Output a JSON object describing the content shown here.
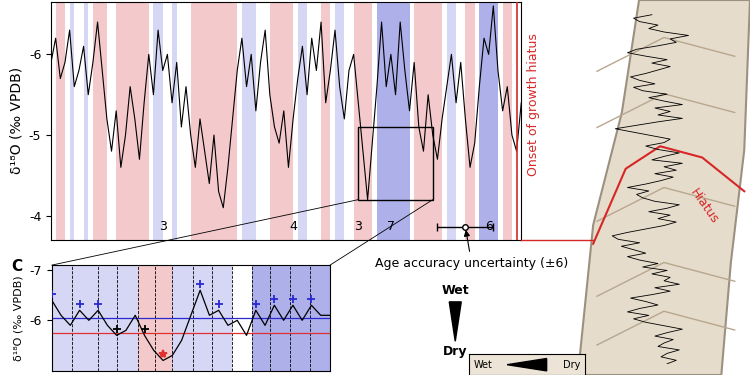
{
  "chart_data": [
    {
      "type": "line",
      "y_label": "δ¹⁸O (‰ VPDB)",
      "color": "#000000",
      "values": [
        -5.9,
        -6.2,
        -5.7,
        -5.9,
        -6.3,
        -5.6,
        -5.8,
        -6.1,
        -5.5,
        -5.9,
        -6.4,
        -5.8,
        -5.2,
        -4.8,
        -5.3,
        -4.6,
        -5.0,
        -5.6,
        -5.2,
        -4.7,
        -5.4,
        -6.0,
        -5.5,
        -6.3,
        -5.8,
        -6.0,
        -5.4,
        -5.9,
        -5.1,
        -5.6,
        -5.0,
        -4.6,
        -5.2,
        -4.8,
        -4.4,
        -5.0,
        -4.3,
        -4.1,
        -4.6,
        -5.2,
        -5.8,
        -6.2,
        -5.6,
        -6.0,
        -5.3,
        -5.9,
        -6.3,
        -5.5,
        -5.1,
        -4.9,
        -5.3,
        -4.6,
        -5.2,
        -5.7,
        -6.1,
        -5.5,
        -6.2,
        -5.8,
        -6.4,
        -5.4,
        -5.8,
        -6.3,
        -5.6,
        -5.2,
        -5.8,
        -6.0,
        -5.4,
        -4.8,
        -4.2,
        -4.9,
        -5.6,
        -6.4,
        -5.6,
        -6.0,
        -5.5,
        -6.4,
        -5.8,
        -5.3,
        -5.9,
        -5.1,
        -4.8,
        -5.5,
        -5.0,
        -4.7,
        -5.2,
        -5.6,
        -6.0,
        -5.4,
        -5.9,
        -5.2,
        -4.6,
        -4.9,
        -5.6,
        -6.2,
        -6.0,
        -6.6,
        -5.8,
        -5.3,
        -5.6,
        -5.0,
        -4.8,
        -5.4
      ],
      "xlim": [
        0,
        101
      ],
      "ylim": [
        -3.7,
        -6.65
      ],
      "yticks": [
        -6,
        -5,
        -4
      ],
      "tick_labels": "y",
      "bands": [
        {
          "start": 1,
          "end": 3,
          "color": "#f3c9cc"
        },
        {
          "start": 4,
          "end": 5,
          "color": "#d6d6f5"
        },
        {
          "start": 7,
          "end": 8,
          "color": "#d6d6f5"
        },
        {
          "start": 9,
          "end": 12,
          "color": "#f3c9cc"
        },
        {
          "start": 14,
          "end": 21,
          "color": "#f3c9cc"
        },
        {
          "start": 22,
          "end": 24,
          "color": "#d6d6f5"
        },
        {
          "start": 26,
          "end": 27,
          "color": "#d6d6f5"
        },
        {
          "start": 30,
          "end": 40,
          "color": "#f3c9cc"
        },
        {
          "start": 41,
          "end": 44,
          "color": "#d6d6f5"
        },
        {
          "start": 47,
          "end": 52,
          "color": "#f3c9cc"
        },
        {
          "start": 53,
          "end": 55,
          "color": "#d6d6f5"
        },
        {
          "start": 58,
          "end": 60,
          "color": "#f3c9cc"
        },
        {
          "start": 61,
          "end": 63,
          "color": "#d6d6f5"
        },
        {
          "start": 65,
          "end": 69,
          "color": "#f3c9cc"
        },
        {
          "start": 70,
          "end": 77,
          "color": "#aeb0ea"
        },
        {
          "start": 78,
          "end": 84,
          "color": "#f3c9cc"
        },
        {
          "start": 85,
          "end": 87,
          "color": "#d6d6f5"
        },
        {
          "start": 89,
          "end": 91,
          "color": "#f3c9cc"
        },
        {
          "start": 92,
          "end": 96,
          "color": "#aeb0ea"
        },
        {
          "start": 97,
          "end": 99,
          "color": "#f3c9cc"
        }
      ],
      "period_numbers": [
        {
          "x": 24,
          "label": "3"
        },
        {
          "x": 52,
          "label": "4"
        },
        {
          "x": 66,
          "label": "3"
        },
        {
          "x": 73,
          "label": "7"
        },
        {
          "x": 94,
          "label": "6"
        }
      ],
      "hiatus": {
        "x": 100,
        "label": "Onset of growth hiatus",
        "color": "#d62728"
      },
      "uncertainty": {
        "x": 89,
        "y": -3.86,
        "error": 6,
        "label": "Age accuracy uncertainty (±6)"
      },
      "zoom": {
        "xlim": [
          66,
          82
        ],
        "ylim": [
          -5.1,
          -4.2
        ]
      }
    },
    {
      "type": "line",
      "panel_label": "C",
      "y_label": "δ¹⁸O (‰ VPDB)",
      "color": "#000000",
      "values": [
        -6.4,
        -6.1,
        -5.9,
        -6.2,
        -6.0,
        -6.2,
        -5.9,
        -5.7,
        -5.8,
        -6.1,
        -5.7,
        -5.4,
        -5.2,
        -5.3,
        -5.6,
        -6.1,
        -6.6,
        -6.1,
        -6.2,
        -5.9,
        -6.0,
        -5.7,
        -6.2,
        -5.9,
        -6.3,
        -6.0,
        -6.3,
        -6.0,
        -6.3,
        -6.1,
        -6.1
      ],
      "xlim": [
        0,
        30
      ],
      "ylim": [
        -5.0,
        -7.1
      ],
      "yticks": [
        -7,
        -6
      ],
      "tick_labels": "y",
      "bands": [
        {
          "start": 0,
          "end": 9.3,
          "color": "#d6d6f5"
        },
        {
          "start": 9.3,
          "end": 13.0,
          "color": "#f3c9cc"
        },
        {
          "start": 13.0,
          "end": 19.4,
          "color": "#d6d6f5"
        },
        {
          "start": 21.6,
          "end": 30,
          "color": "#aeb0ea"
        }
      ],
      "layer_boundaries": [
        2.2,
        5.0,
        7.0,
        9.3,
        11.1,
        13.0,
        15.2,
        17.3,
        19.4,
        21.6,
        23.5,
        25.7,
        27.8
      ],
      "thresholds": [
        {
          "value": -6.05,
          "color": "#2a2ad0"
        },
        {
          "value": -5.75,
          "color": "#e03030"
        }
      ],
      "markers": [
        {
          "x": 0,
          "color": "#2a2ad0",
          "marker": "+"
        },
        {
          "x": 3,
          "color": "#2a2ad0",
          "marker": "+"
        },
        {
          "x": 5,
          "color": "#2a2ad0",
          "marker": "+"
        },
        {
          "x": 7,
          "color": "#000000",
          "marker": "+"
        },
        {
          "x": 10,
          "color": "#000000",
          "marker": "+"
        },
        {
          "x": 12,
          "color": "#e03030",
          "marker": "*"
        },
        {
          "x": 16,
          "color": "#2a2ad0",
          "marker": "+"
        },
        {
          "x": 18,
          "color": "#2a2ad0",
          "marker": "+"
        },
        {
          "x": 22,
          "color": "#2a2ad0",
          "marker": "+"
        },
        {
          "x": 24,
          "color": "#2a2ad0",
          "marker": "+"
        },
        {
          "x": 26,
          "color": "#2a2ad0",
          "marker": "+"
        },
        {
          "x": 28,
          "color": "#2a2ad0",
          "marker": "+"
        }
      ],
      "scale": {
        "top": "Wet",
        "bottom": "Dry"
      }
    }
  ],
  "photo": {
    "hiatus_label": "Hiatus",
    "inset": {
      "left": "Wet",
      "right": "Dry"
    }
  }
}
